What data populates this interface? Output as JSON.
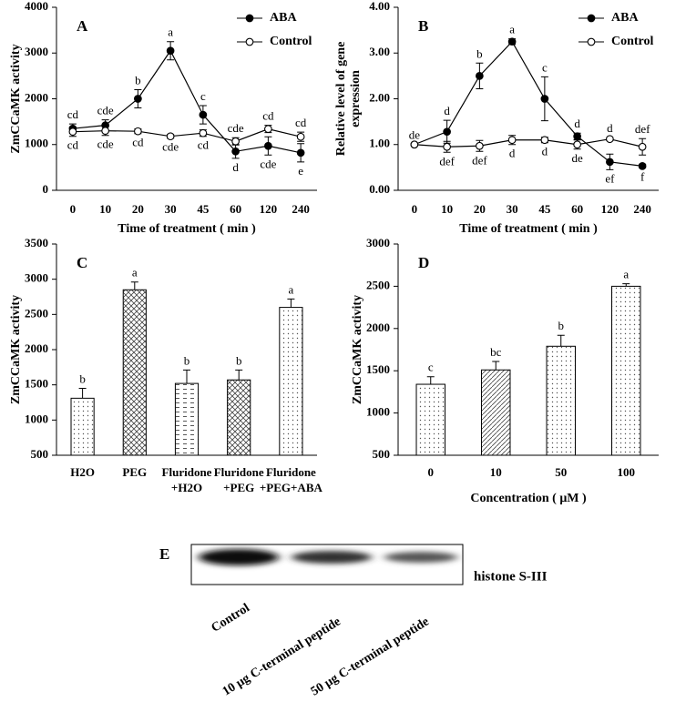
{
  "chart_data": [
    {
      "type": "line",
      "panel": "A",
      "xlabel": "Time of treatment ( min )",
      "ylabel": [
        "ZmCCaMK activity"
      ],
      "categories": [
        "0",
        "10",
        "20",
        "30",
        "45",
        "60",
        "120",
        "240"
      ],
      "ylim": [
        0,
        4000
      ],
      "yticks": [
        0,
        1000,
        2000,
        3000,
        4000
      ],
      "legend": "upper right",
      "series": [
        {
          "name": "ABA",
          "color": "#000000",
          "marker_fill": "#000000",
          "values": [
            1350,
            1420,
            2000,
            3050,
            1650,
            850,
            970,
            820
          ],
          "errors": [
            100,
            120,
            200,
            200,
            200,
            150,
            200,
            200
          ],
          "letters": [
            "cd",
            "cde",
            "b",
            "a",
            "c",
            "d",
            "cde",
            "e"
          ]
        },
        {
          "name": "Control",
          "color": "#000000",
          "marker_fill": "#ffffff",
          "values": [
            1280,
            1300,
            1290,
            1180,
            1250,
            1070,
            1340,
            1170
          ],
          "errors": [
            100,
            100,
            50,
            40,
            70,
            80,
            80,
            100
          ],
          "letters": [
            "cd",
            "cde",
            "cd",
            "cde",
            "cd",
            "cde",
            "cd",
            "cd"
          ]
        }
      ]
    },
    {
      "type": "line",
      "panel": "B",
      "xlabel": "Time of treatment ( min )",
      "ylabel": [
        "Relative level of gene",
        "expression"
      ],
      "categories": [
        "0",
        "10",
        "20",
        "30",
        "45",
        "60",
        "120",
        "240"
      ],
      "ylim": [
        0,
        4
      ],
      "yticks": [
        {
          "value": 0,
          "label": "0.00"
        },
        {
          "value": 1,
          "label": "1.00"
        },
        {
          "value": 2,
          "label": "2.00"
        },
        {
          "value": 3,
          "label": "3.00"
        },
        {
          "value": 4,
          "label": "4.00"
        }
      ],
      "legend": "upper right",
      "series": [
        {
          "name": "ABA",
          "color": "#000000",
          "marker_fill": "#000000",
          "values": [
            1.0,
            1.28,
            2.5,
            3.25,
            2.0,
            1.18,
            0.62,
            0.53
          ],
          "errors": [
            0.0,
            0.25,
            0.28,
            0.06,
            0.48,
            0.07,
            0.17,
            0.04
          ],
          "letters": [
            "de",
            "d",
            "b",
            "a",
            "c",
            "d",
            "ef",
            "f"
          ]
        },
        {
          "name": "Control",
          "color": "#000000",
          "marker_fill": "#ffffff",
          "values": [
            1.0,
            0.95,
            0.97,
            1.1,
            1.1,
            1.0,
            1.12,
            0.95
          ],
          "errors": [
            0.02,
            0.12,
            0.12,
            0.1,
            0.06,
            0.1,
            0.03,
            0.18
          ],
          "letters": [
            null,
            "def",
            "def",
            "d",
            "d",
            "de",
            "d",
            "def"
          ]
        }
      ]
    },
    {
      "type": "bar",
      "panel": "C",
      "ylabel": [
        "ZmCCaMK activity"
      ],
      "categories": [
        [
          "H2O"
        ],
        [
          "PEG"
        ],
        [
          "Fluridone",
          "+H2O"
        ],
        [
          "Fluridone",
          "+PEG"
        ],
        [
          "Fluridone",
          "+PEG+ABA"
        ]
      ],
      "ylim": [
        500,
        3500
      ],
      "yticks": [
        500,
        1000,
        1500,
        2000,
        2500,
        3000,
        3500
      ],
      "values": [
        1310,
        2850,
        1520,
        1570,
        2600
      ],
      "errors": [
        140,
        110,
        190,
        140,
        120
      ],
      "letters": [
        "b",
        "a",
        "b",
        "b",
        "a"
      ],
      "patterns": [
        "dots",
        "cross",
        "dash",
        "cross",
        "dots"
      ]
    },
    {
      "type": "bar",
      "panel": "D",
      "xlabel": "Concentration ( μM )",
      "ylabel": [
        "ZmCCaMK activity"
      ],
      "categories": [
        [
          "0"
        ],
        [
          "10"
        ],
        [
          "50"
        ],
        [
          "100"
        ]
      ],
      "ylim": [
        500,
        3000
      ],
      "yticks": [
        500,
        1000,
        1500,
        2000,
        2500,
        3000
      ],
      "values": [
        1340,
        1510,
        1790,
        2500
      ],
      "errors": [
        90,
        100,
        130,
        30
      ],
      "letters": [
        "c",
        "bc",
        "b",
        "a"
      ],
      "patterns": [
        "dots",
        "diag",
        "dots",
        "dots"
      ]
    }
  ],
  "blot": {
    "label": "E",
    "band_label": "histone S-III",
    "lanes": [
      "Control",
      "10 μg C-terminal peptide",
      "50 μg C-terminal peptide"
    ]
  }
}
